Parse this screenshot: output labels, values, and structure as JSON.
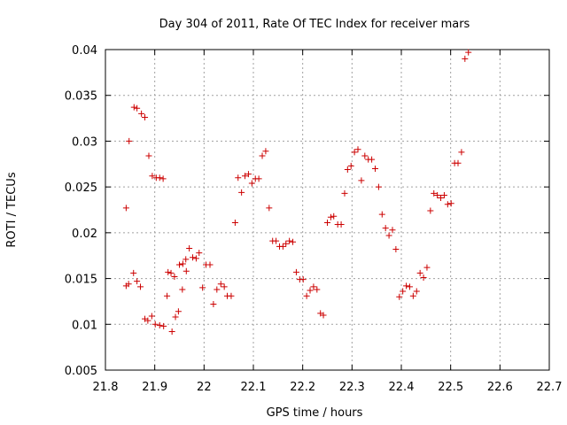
{
  "chart_data": {
    "type": "scatter",
    "title": "Day 304 of 2011, Rate Of TEC Index for receiver mars",
    "xlabel": "GPS time / hours",
    "ylabel": "ROTI / TECUs",
    "xlim": [
      21.8,
      22.7
    ],
    "ylim": [
      0.005,
      0.04
    ],
    "xticks": [
      21.8,
      21.9,
      22.0,
      22.1,
      22.2,
      22.3,
      22.4,
      22.5,
      22.6,
      22.7
    ],
    "xtick_labels": [
      "21.8",
      "21.9",
      "22",
      "22.1",
      "22.2",
      "22.3",
      "22.4",
      "22.5",
      "22.6",
      "22.7"
    ],
    "yticks": [
      0.005,
      0.01,
      0.015,
      0.02,
      0.025,
      0.03,
      0.035,
      0.04
    ],
    "ytick_labels": [
      "0.005",
      "0.01",
      "0.015",
      "0.02",
      "0.025",
      "0.03",
      "0.035",
      "0.04"
    ],
    "grid": true,
    "marker": "+",
    "color": "#cc0000",
    "series": [
      {
        "name": "ROTI",
        "points": [
          [
            21.842,
            0.0227
          ],
          [
            21.842,
            0.0142
          ],
          [
            21.847,
            0.0144
          ],
          [
            21.848,
            0.03
          ],
          [
            21.857,
            0.0156
          ],
          [
            21.858,
            0.0337
          ],
          [
            21.864,
            0.0336
          ],
          [
            21.864,
            0.0147
          ],
          [
            21.871,
            0.0141
          ],
          [
            21.873,
            0.033
          ],
          [
            21.88,
            0.0326
          ],
          [
            21.88,
            0.0106
          ],
          [
            21.886,
            0.0104
          ],
          [
            21.888,
            0.0284
          ],
          [
            21.894,
            0.0109
          ],
          [
            21.895,
            0.0262
          ],
          [
            21.901,
            0.01
          ],
          [
            21.903,
            0.026
          ],
          [
            21.91,
            0.026
          ],
          [
            21.91,
            0.0099
          ],
          [
            21.917,
            0.0259
          ],
          [
            21.918,
            0.0098
          ],
          [
            21.925,
            0.0131
          ],
          [
            21.927,
            0.0157
          ],
          [
            21.933,
            0.0156
          ],
          [
            21.935,
            0.0092
          ],
          [
            21.94,
            0.0152
          ],
          [
            21.942,
            0.0108
          ],
          [
            21.948,
            0.0114
          ],
          [
            21.95,
            0.0165
          ],
          [
            21.956,
            0.0138
          ],
          [
            21.957,
            0.0166
          ],
          [
            21.963,
            0.0171
          ],
          [
            21.964,
            0.0158
          ],
          [
            21.97,
            0.0183
          ],
          [
            21.977,
            0.0173
          ],
          [
            21.984,
            0.0172
          ],
          [
            21.99,
            0.0178
          ],
          [
            21.997,
            0.014
          ],
          [
            22.004,
            0.0165
          ],
          [
            22.012,
            0.0165
          ],
          [
            22.019,
            0.0122
          ],
          [
            22.026,
            0.0138
          ],
          [
            22.034,
            0.0144
          ],
          [
            22.041,
            0.0141
          ],
          [
            22.047,
            0.0131
          ],
          [
            22.055,
            0.0131
          ],
          [
            22.063,
            0.0211
          ],
          [
            22.069,
            0.026
          ],
          [
            22.076,
            0.0244
          ],
          [
            22.083,
            0.0262
          ],
          [
            22.09,
            0.0264
          ],
          [
            22.097,
            0.0254
          ],
          [
            22.104,
            0.0259
          ],
          [
            22.111,
            0.0259
          ],
          [
            22.118,
            0.0284
          ],
          [
            22.125,
            0.0289
          ],
          [
            22.132,
            0.0227
          ],
          [
            22.139,
            0.0191
          ],
          [
            22.146,
            0.0191
          ],
          [
            22.153,
            0.0185
          ],
          [
            22.16,
            0.0185
          ],
          [
            22.166,
            0.0188
          ],
          [
            22.173,
            0.0191
          ],
          [
            22.18,
            0.019
          ],
          [
            22.187,
            0.0157
          ],
          [
            22.194,
            0.0149
          ],
          [
            22.201,
            0.0149
          ],
          [
            22.208,
            0.0131
          ],
          [
            22.215,
            0.0137
          ],
          [
            22.222,
            0.0141
          ],
          [
            22.229,
            0.0138
          ],
          [
            22.236,
            0.0112
          ],
          [
            22.242,
            0.011
          ],
          [
            22.25,
            0.0211
          ],
          [
            22.257,
            0.0217
          ],
          [
            22.263,
            0.0218
          ],
          [
            22.271,
            0.0209
          ],
          [
            22.278,
            0.0209
          ],
          [
            22.285,
            0.0243
          ],
          [
            22.291,
            0.0269
          ],
          [
            22.298,
            0.0273
          ],
          [
            22.305,
            0.0288
          ],
          [
            22.312,
            0.0291
          ],
          [
            22.319,
            0.0257
          ],
          [
            22.326,
            0.0284
          ],
          [
            22.333,
            0.028
          ],
          [
            22.34,
            0.028
          ],
          [
            22.347,
            0.027
          ],
          [
            22.354,
            0.025
          ],
          [
            22.361,
            0.022
          ],
          [
            22.368,
            0.0205
          ],
          [
            22.375,
            0.0197
          ],
          [
            22.382,
            0.0203
          ],
          [
            22.389,
            0.0182
          ],
          [
            22.396,
            0.013
          ],
          [
            22.403,
            0.0136
          ],
          [
            22.41,
            0.0142
          ],
          [
            22.417,
            0.0141
          ],
          [
            22.424,
            0.0131
          ],
          [
            22.431,
            0.0136
          ],
          [
            22.438,
            0.0156
          ],
          [
            22.445,
            0.0151
          ],
          [
            22.452,
            0.0162
          ],
          [
            22.459,
            0.0224
          ],
          [
            22.466,
            0.0243
          ],
          [
            22.473,
            0.0241
          ],
          [
            22.48,
            0.0238
          ],
          [
            22.487,
            0.0241
          ],
          [
            22.494,
            0.0231
          ],
          [
            22.501,
            0.0232
          ],
          [
            22.508,
            0.0276
          ],
          [
            22.515,
            0.0276
          ],
          [
            22.522,
            0.0288
          ],
          [
            22.529,
            0.039
          ],
          [
            22.536,
            0.0397
          ]
        ]
      }
    ]
  }
}
